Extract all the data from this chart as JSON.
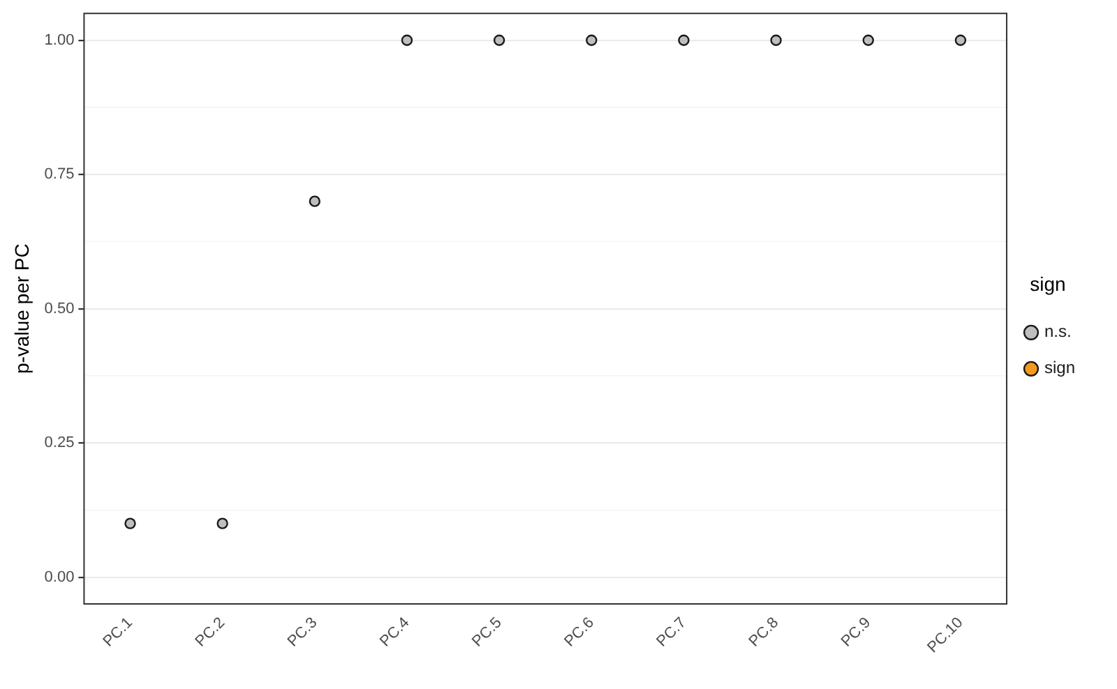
{
  "chart_data": {
    "type": "scatter",
    "ylabel": "p-value per PC",
    "legend_title": "sign",
    "legend": "right",
    "grid": "y",
    "marker": "circle",
    "categories": [
      "PC.1",
      "PC.2",
      "PC.3",
      "PC.4",
      "PC.5",
      "PC.6",
      "PC.7",
      "PC.8",
      "PC.9",
      "PC.10"
    ],
    "series": [
      {
        "name": "n.s.",
        "color": "#bebebe",
        "values": [
          0.1,
          0.1,
          0.7,
          1,
          1,
          1,
          1,
          1,
          1,
          1
        ]
      },
      {
        "name": "sign",
        "color": "#f39a1e",
        "values": [
          null,
          null,
          null,
          null,
          null,
          null,
          null,
          null,
          null,
          null
        ]
      }
    ],
    "ylim": [
      -0.05,
      1.05
    ],
    "yticks": [
      {
        "value": 0,
        "label": "0.00"
      },
      {
        "value": 0.25,
        "label": "0.25"
      },
      {
        "value": 0.5,
        "label": "0.50"
      },
      {
        "value": 0.75,
        "label": "0.75"
      },
      {
        "value": 1,
        "label": "1.00"
      }
    ]
  }
}
